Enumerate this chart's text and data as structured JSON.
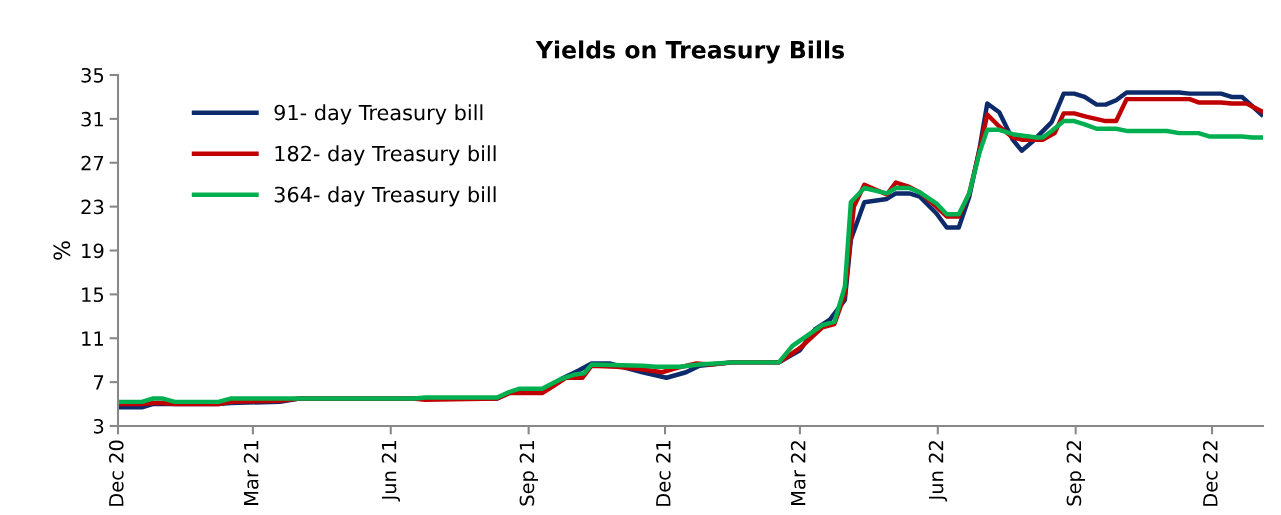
{
  "chart_data": {
    "type": "line",
    "title": "Yields on Treasury Bills",
    "ylabel": "%",
    "xlim": [
      "2020-12-01",
      "2023-01-04"
    ],
    "xticks": [
      {
        "value": "2020-12-01",
        "label": "Dec 20"
      },
      {
        "value": "2021-03-01",
        "label": "Mar 21"
      },
      {
        "value": "2021-06-01",
        "label": "Jun 21"
      },
      {
        "value": "2021-09-01",
        "label": "Sep 21"
      },
      {
        "value": "2021-12-01",
        "label": "Dec 21"
      },
      {
        "value": "2022-03-01",
        "label": "Mar 22"
      },
      {
        "value": "2022-06-01",
        "label": "Jun 22"
      },
      {
        "value": "2022-09-01",
        "label": "Sep 22"
      },
      {
        "value": "2022-12-01",
        "label": "Dec 22"
      }
    ],
    "ylim": [
      3,
      35
    ],
    "yticks": [
      3,
      7,
      11,
      15,
      19,
      23,
      27,
      31,
      35
    ],
    "grid": false,
    "legend": "top left",
    "marker": "none",
    "line_style": "solid",
    "series": [
      {
        "name": "91- day Treasury bill",
        "color": "#0d2a6b",
        "x": [
          "2020-12-01",
          "2020-12-17",
          "2020-12-24",
          "2021-01-08",
          "2021-02-06",
          "2021-02-14",
          "2021-03-19",
          "2021-04-01",
          "2021-06-16",
          "2021-08-11",
          "2021-08-19",
          "2021-08-26",
          "2021-09-10",
          "2021-09-17",
          "2021-09-23",
          "2021-10-05",
          "2021-10-13",
          "2021-10-25",
          "2021-11-16",
          "2021-12-02",
          "2021-12-15",
          "2021-12-24",
          "2022-01-15",
          "2022-02-15",
          "2022-03-01",
          "2022-03-11",
          "2022-03-21",
          "2022-03-31",
          "2022-04-04",
          "2022-04-13",
          "2022-04-28",
          "2022-05-04",
          "2022-05-13",
          "2022-05-20",
          "2022-05-31",
          "2022-06-07",
          "2022-06-15",
          "2022-06-22",
          "2022-06-29",
          "2022-07-04",
          "2022-07-12",
          "2022-07-21",
          "2022-07-27",
          "2022-08-03",
          "2022-08-16",
          "2022-08-24",
          "2022-08-31",
          "2022-09-07",
          "2022-09-15",
          "2022-09-21",
          "2022-09-28",
          "2022-10-05",
          "2022-11-09",
          "2022-11-16",
          "2022-12-07",
          "2022-12-14",
          "2022-12-21",
          "2023-01-03"
        ],
        "values": [
          4.7,
          4.7,
          5.0,
          5.0,
          5.0,
          5.1,
          5.2,
          5.5,
          5.5,
          5.5,
          6.0,
          6.3,
          6.3,
          6.8,
          7.3,
          8.1,
          8.7,
          8.7,
          7.9,
          7.4,
          7.9,
          8.5,
          8.8,
          8.8,
          9.9,
          11.8,
          12.7,
          14.5,
          20.0,
          23.4,
          23.7,
          24.2,
          24.2,
          23.9,
          22.4,
          21.1,
          21.1,
          23.9,
          28.4,
          32.4,
          31.6,
          29.1,
          28.1,
          28.9,
          30.7,
          33.3,
          33.3,
          33.0,
          32.3,
          32.3,
          32.7,
          33.4,
          33.4,
          33.3,
          33.3,
          33.0,
          33.0,
          31.4
        ]
      },
      {
        "name": "182- day Treasury bill",
        "color": "#c00000",
        "x": [
          "2020-12-01",
          "2020-12-17",
          "2020-12-24",
          "2020-12-31",
          "2021-01-08",
          "2021-02-06",
          "2021-02-14",
          "2021-03-19",
          "2021-04-01",
          "2021-06-16",
          "2021-06-24",
          "2021-08-11",
          "2021-08-19",
          "2021-09-10",
          "2021-09-17",
          "2021-09-26",
          "2021-10-07",
          "2021-10-13",
          "2021-10-30",
          "2021-11-14",
          "2021-11-29",
          "2021-12-09",
          "2021-12-22",
          "2021-12-31",
          "2022-01-15",
          "2022-02-15",
          "2022-03-01",
          "2022-03-16",
          "2022-03-24",
          "2022-03-31",
          "2022-04-06",
          "2022-04-13",
          "2022-04-28",
          "2022-05-04",
          "2022-05-13",
          "2022-05-20",
          "2022-05-31",
          "2022-06-07",
          "2022-06-15",
          "2022-06-22",
          "2022-06-29",
          "2022-07-04",
          "2022-07-12",
          "2022-07-21",
          "2022-07-27",
          "2022-08-10",
          "2022-08-18",
          "2022-08-24",
          "2022-08-31",
          "2022-09-08",
          "2022-09-21",
          "2022-09-28",
          "2022-10-05",
          "2022-11-16",
          "2022-11-22",
          "2022-12-07",
          "2022-12-14",
          "2022-12-24",
          "2023-01-03"
        ],
        "values": [
          5.0,
          5.0,
          5.1,
          5.1,
          5.0,
          5.0,
          5.2,
          5.3,
          5.5,
          5.5,
          5.4,
          5.5,
          6.0,
          6.0,
          6.6,
          7.4,
          7.4,
          8.5,
          8.4,
          8.2,
          7.9,
          8.3,
          8.7,
          8.6,
          8.8,
          8.8,
          10.1,
          12.0,
          12.3,
          15.0,
          23.0,
          25.0,
          24.1,
          25.2,
          24.8,
          24.3,
          23.0,
          22.1,
          22.1,
          24.2,
          28.2,
          31.4,
          30.3,
          29.3,
          29.1,
          29.1,
          29.7,
          31.5,
          31.5,
          31.2,
          30.8,
          30.8,
          32.8,
          32.8,
          32.5,
          32.5,
          32.4,
          32.4,
          31.7
        ]
      },
      {
        "name": "364- day Treasury bill",
        "color": "#00b050",
        "x": [
          "2020-12-01",
          "2020-12-17",
          "2020-12-24",
          "2020-12-31",
          "2021-01-08",
          "2021-02-06",
          "2021-02-14",
          "2021-06-16",
          "2021-06-24",
          "2021-08-11",
          "2021-08-19",
          "2021-08-26",
          "2021-09-10",
          "2021-09-17",
          "2021-09-23",
          "2021-10-02",
          "2021-10-08",
          "2021-10-13",
          "2021-11-16",
          "2021-11-25",
          "2021-12-11",
          "2021-12-24",
          "2022-01-15",
          "2022-02-15",
          "2022-02-24",
          "2022-03-16",
          "2022-03-24",
          "2022-03-31",
          "2022-04-04",
          "2022-04-13",
          "2022-04-28",
          "2022-05-04",
          "2022-05-13",
          "2022-05-20",
          "2022-05-31",
          "2022-06-07",
          "2022-06-15",
          "2022-06-22",
          "2022-06-29",
          "2022-07-04",
          "2022-07-12",
          "2022-07-21",
          "2022-08-06",
          "2022-08-10",
          "2022-08-16",
          "2022-08-24",
          "2022-08-31",
          "2022-09-07",
          "2022-09-15",
          "2022-09-28",
          "2022-10-05",
          "2022-11-01",
          "2022-11-09",
          "2022-11-22",
          "2022-11-29",
          "2022-12-21",
          "2022-12-28",
          "2023-01-03"
        ],
        "values": [
          5.2,
          5.2,
          5.5,
          5.5,
          5.2,
          5.2,
          5.5,
          5.5,
          5.6,
          5.6,
          6.1,
          6.4,
          6.4,
          6.9,
          7.3,
          7.7,
          7.8,
          8.6,
          8.5,
          8.4,
          8.4,
          8.6,
          8.8,
          8.8,
          10.3,
          12.2,
          12.5,
          15.7,
          23.4,
          24.7,
          24.2,
          24.7,
          24.7,
          24.3,
          23.3,
          22.3,
          22.3,
          24.2,
          28.0,
          30.0,
          30.0,
          29.6,
          29.3,
          29.3,
          29.9,
          30.8,
          30.8,
          30.5,
          30.1,
          30.1,
          29.9,
          29.9,
          29.7,
          29.7,
          29.4,
          29.4,
          29.3,
          29.3
        ]
      }
    ]
  }
}
